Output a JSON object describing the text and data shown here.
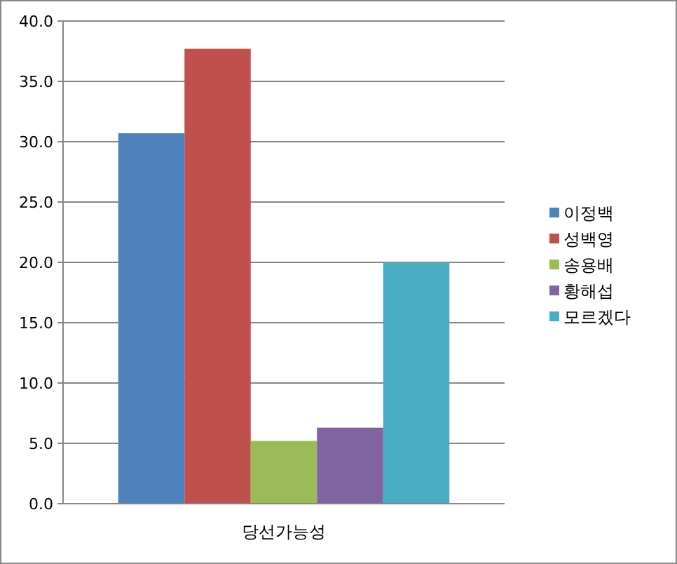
{
  "chart_data": {
    "type": "bar",
    "categories": [
      "당선가능성"
    ],
    "series": [
      {
        "name": "이정백",
        "color": "#4f81bd",
        "values": [
          30.7
        ]
      },
      {
        "name": "성백영",
        "color": "#c0504d",
        "values": [
          37.7
        ]
      },
      {
        "name": "송용배",
        "color": "#9bbb59",
        "values": [
          5.2
        ]
      },
      {
        "name": "황해섭",
        "color": "#8064a2",
        "values": [
          6.3
        ]
      },
      {
        "name": "모르겠다",
        "color": "#4bacc6",
        "values": [
          20.0
        ]
      }
    ],
    "ylim": [
      0,
      40
    ],
    "yticks": [
      {
        "value": 0,
        "label": "0.0"
      },
      {
        "value": 5,
        "label": "5.0"
      },
      {
        "value": 10,
        "label": "10.0"
      },
      {
        "value": 15,
        "label": "15.0"
      },
      {
        "value": 20,
        "label": "20.0"
      },
      {
        "value": 25,
        "label": "25.0"
      },
      {
        "value": 30,
        "label": "30.0"
      },
      {
        "value": 35,
        "label": "35.0"
      },
      {
        "value": 40,
        "label": "40.0"
      }
    ],
    "grid": "y",
    "legend": "right"
  }
}
